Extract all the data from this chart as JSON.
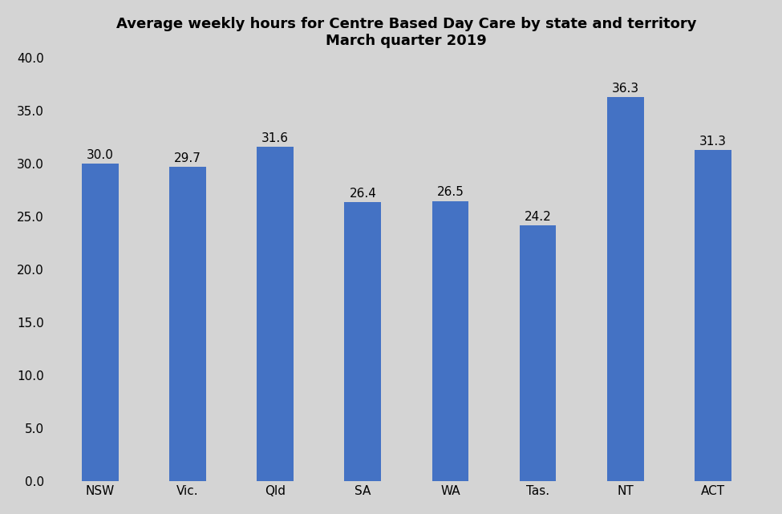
{
  "title": "Average weekly hours for Centre Based Day Care by state and territory\nMarch quarter 2019",
  "categories": [
    "NSW",
    "Vic.",
    "Qld",
    "SA",
    "WA",
    "Tas.",
    "NT",
    "ACT"
  ],
  "values": [
    30.0,
    29.7,
    31.6,
    26.4,
    26.5,
    24.2,
    36.3,
    31.3
  ],
  "bar_color": "#4472C4",
  "background_color": "#D4D4D4",
  "ylim": [
    0,
    40
  ],
  "yticks": [
    0.0,
    5.0,
    10.0,
    15.0,
    20.0,
    25.0,
    30.0,
    35.0,
    40.0
  ],
  "title_fontsize": 13,
  "tick_fontsize": 11,
  "label_fontsize": 11,
  "bar_width": 0.42
}
